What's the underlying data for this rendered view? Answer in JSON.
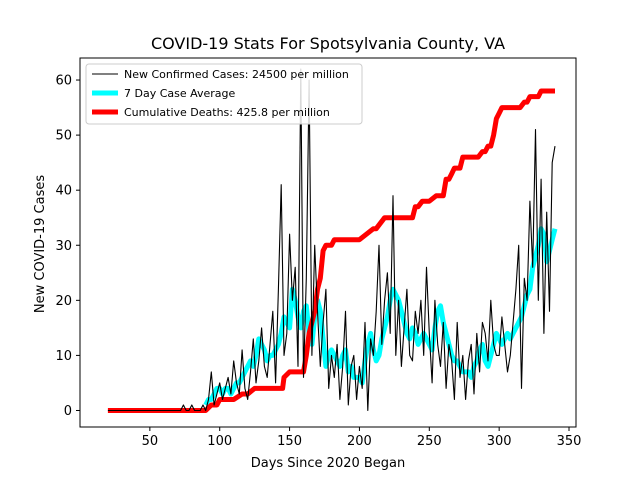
{
  "chart_data": {
    "type": "line",
    "title": "COVID-19 Stats For Spotsylvania County, VA",
    "xlabel": "Days Since 2020 Began",
    "ylabel": "New COVID-19 Cases",
    "xlim": [
      0,
      355
    ],
    "ylim": [
      -3,
      64
    ],
    "xticks": [
      50,
      100,
      150,
      200,
      250,
      300,
      350
    ],
    "yticks": [
      0,
      10,
      20,
      30,
      40,
      50,
      60
    ],
    "grid": false,
    "legend_position": "top-left",
    "series": [
      {
        "name": "New Confirmed Cases: 24500 per million",
        "color": "#000000",
        "x": [
          20,
          30,
          40,
          50,
          60,
          70,
          72,
          74,
          76,
          78,
          80,
          82,
          84,
          86,
          88,
          90,
          92,
          94,
          96,
          98,
          100,
          102,
          104,
          106,
          108,
          110,
          112,
          114,
          116,
          118,
          120,
          122,
          124,
          126,
          128,
          130,
          132,
          134,
          136,
          138,
          140,
          142,
          144,
          146,
          148,
          150,
          152,
          154,
          156,
          158,
          160,
          162,
          164,
          166,
          168,
          170,
          172,
          174,
          176,
          178,
          180,
          182,
          184,
          186,
          188,
          190,
          192,
          194,
          196,
          198,
          200,
          202,
          204,
          206,
          208,
          210,
          212,
          214,
          216,
          218,
          220,
          222,
          224,
          226,
          228,
          230,
          232,
          234,
          236,
          238,
          240,
          242,
          244,
          246,
          248,
          250,
          252,
          254,
          256,
          258,
          260,
          262,
          264,
          266,
          268,
          270,
          272,
          274,
          276,
          278,
          280,
          282,
          284,
          286,
          288,
          290,
          292,
          294,
          296,
          298,
          300,
          302,
          304,
          306,
          308,
          310,
          312,
          314,
          316,
          318,
          320,
          322,
          324,
          326,
          328,
          330,
          332,
          334,
          336,
          338,
          340
        ],
        "values": [
          0,
          0,
          0,
          0,
          0,
          0,
          0,
          1,
          0,
          0,
          1,
          0,
          0,
          0,
          1,
          0,
          2,
          7,
          1,
          3,
          5,
          2,
          4,
          6,
          3,
          9,
          5,
          3,
          11,
          4,
          2,
          7,
          13,
          5,
          9,
          15,
          8,
          6,
          12,
          18,
          5,
          22,
          41,
          10,
          14,
          32,
          20,
          26,
          8,
          62,
          6,
          24,
          60,
          10,
          30,
          18,
          8,
          16,
          22,
          4,
          10,
          6,
          12,
          2,
          8,
          18,
          1,
          8,
          10,
          2,
          8,
          4,
          16,
          0,
          13,
          10,
          18,
          30,
          12,
          20,
          25,
          14,
          39,
          10,
          20,
          8,
          15,
          22,
          10,
          9,
          18,
          14,
          20,
          10,
          26,
          14,
          5,
          20,
          12,
          8,
          16,
          4,
          12,
          9,
          2,
          16,
          6,
          10,
          2,
          9,
          12,
          3,
          14,
          7,
          16,
          14,
          9,
          20,
          12,
          10,
          10,
          17,
          12,
          7,
          10,
          16,
          22,
          30,
          4,
          24,
          20,
          38,
          26,
          51,
          20,
          42,
          14,
          36,
          18,
          45,
          48
        ]
      },
      {
        "name": "7 Day Case Average",
        "color": "#00ffff",
        "x": [
          90,
          92,
          94,
          96,
          98,
          100,
          102,
          104,
          106,
          108,
          110,
          112,
          114,
          116,
          118,
          120,
          122,
          124,
          126,
          128,
          130,
          132,
          134,
          136,
          138,
          140,
          142,
          144,
          146,
          148,
          150,
          152,
          154,
          156,
          158,
          160,
          162,
          164,
          166,
          168,
          170,
          172,
          174,
          176,
          178,
          180,
          182,
          184,
          186,
          188,
          190,
          192,
          194,
          196,
          198,
          200,
          202,
          204,
          206,
          208,
          210,
          212,
          214,
          216,
          218,
          220,
          222,
          224,
          226,
          228,
          230,
          232,
          234,
          236,
          238,
          240,
          242,
          244,
          246,
          248,
          250,
          252,
          254,
          256,
          258,
          260,
          262,
          264,
          266,
          268,
          270,
          272,
          274,
          276,
          278,
          280,
          282,
          284,
          286,
          288,
          290,
          292,
          294,
          296,
          298,
          300,
          302,
          304,
          306,
          308,
          310,
          312,
          314,
          316,
          318,
          320,
          322,
          324,
          326,
          328,
          330,
          332,
          334,
          336,
          338,
          340
        ],
        "values": [
          1,
          2,
          2,
          3,
          4,
          4,
          3,
          4,
          4,
          3,
          4,
          5,
          5,
          6,
          7,
          8,
          9,
          8,
          10,
          13,
          12,
          11,
          9,
          10,
          10,
          11,
          12,
          14,
          17,
          16,
          15,
          22,
          20,
          17,
          15,
          18,
          19,
          14,
          12,
          17,
          20,
          18,
          13,
          8,
          10,
          11,
          10,
          9,
          8,
          10,
          11,
          7,
          8,
          6,
          6,
          6,
          5,
          9,
          12,
          14,
          11,
          9,
          10,
          13,
          15,
          17,
          20,
          22,
          21,
          20,
          18,
          16,
          14,
          13,
          15,
          14,
          12,
          13,
          14,
          13,
          12,
          11,
          15,
          18,
          19,
          16,
          14,
          12,
          10,
          9,
          9,
          8,
          7,
          7,
          7,
          6,
          8,
          9,
          11,
          12,
          9,
          8,
          10,
          12,
          14,
          13,
          12,
          13,
          14,
          13,
          14,
          15,
          16,
          17,
          19,
          21,
          22,
          26,
          28,
          30,
          33,
          32,
          27,
          29,
          31,
          33
        ]
      },
      {
        "name": "Cumulative Deaths: 425.8 per million",
        "color": "#ff0000",
        "x": [
          20,
          90,
          94,
          96,
          98,
          100,
          108,
          110,
          116,
          118,
          120,
          125,
          130,
          135,
          140,
          145,
          146,
          150,
          155,
          160,
          162,
          164,
          166,
          168,
          170,
          172,
          174,
          176,
          178,
          180,
          182,
          186,
          190,
          195,
          198,
          200,
          205,
          210,
          212,
          215,
          218,
          220,
          225,
          230,
          235,
          238,
          240,
          242,
          245,
          250,
          255,
          258,
          260,
          262,
          264,
          266,
          268,
          270,
          272,
          274,
          276,
          280,
          282,
          285,
          288,
          290,
          292,
          294,
          296,
          298,
          300,
          302,
          304,
          306,
          310,
          315,
          318,
          320,
          322,
          325,
          328,
          330,
          332,
          335,
          338,
          340
        ],
        "values": [
          0,
          0,
          1,
          1,
          1,
          2,
          2,
          2,
          3,
          3,
          3,
          4,
          4,
          4,
          4,
          4,
          6,
          7,
          7,
          7,
          10,
          14,
          16,
          18,
          22,
          24,
          29,
          30,
          30,
          30,
          31,
          31,
          31,
          31,
          31,
          31,
          32,
          33,
          33,
          34,
          35,
          35,
          35,
          35,
          35,
          35,
          37,
          37,
          38,
          38,
          39,
          39,
          39,
          42,
          42,
          43,
          44,
          44,
          44,
          46,
          46,
          46,
          46,
          46,
          47,
          47,
          48,
          48,
          50,
          53,
          54,
          55,
          55,
          55,
          55,
          55,
          56,
          56,
          57,
          57,
          57,
          58,
          58,
          58,
          58,
          58
        ]
      }
    ]
  }
}
